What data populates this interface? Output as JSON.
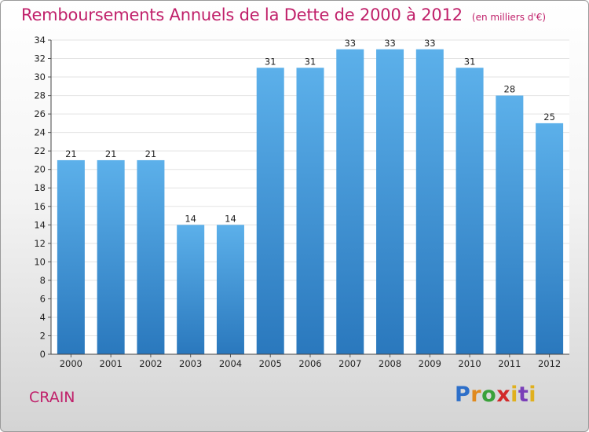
{
  "title": "Remboursements Annuels de la Dette de 2000 à 2012",
  "unit": "(en milliers d'€)",
  "commune": "CRAIN",
  "logo": "Proxiti",
  "colors": {
    "bar_top": "#5cb0ea",
    "bar_bottom": "#2a78bd",
    "title": "#c0206a"
  },
  "chart_data": {
    "type": "bar",
    "title": "Remboursements Annuels de la Dette de 2000 à 2012",
    "subtitle": "(en milliers d'€)",
    "xlabel": "",
    "ylabel": "",
    "categories": [
      "2000",
      "2001",
      "2002",
      "2003",
      "2004",
      "2005",
      "2006",
      "2007",
      "2008",
      "2009",
      "2010",
      "2011",
      "2012"
    ],
    "values": [
      21,
      21,
      21,
      14,
      14,
      31,
      31,
      33,
      33,
      33,
      31,
      28,
      25
    ],
    "ylim": [
      0,
      34
    ],
    "yticks": [
      0,
      2,
      4,
      6,
      8,
      10,
      12,
      14,
      16,
      18,
      20,
      22,
      24,
      26,
      28,
      30,
      32,
      34
    ],
    "grid": true,
    "legend": "none",
    "data_labels": true
  }
}
